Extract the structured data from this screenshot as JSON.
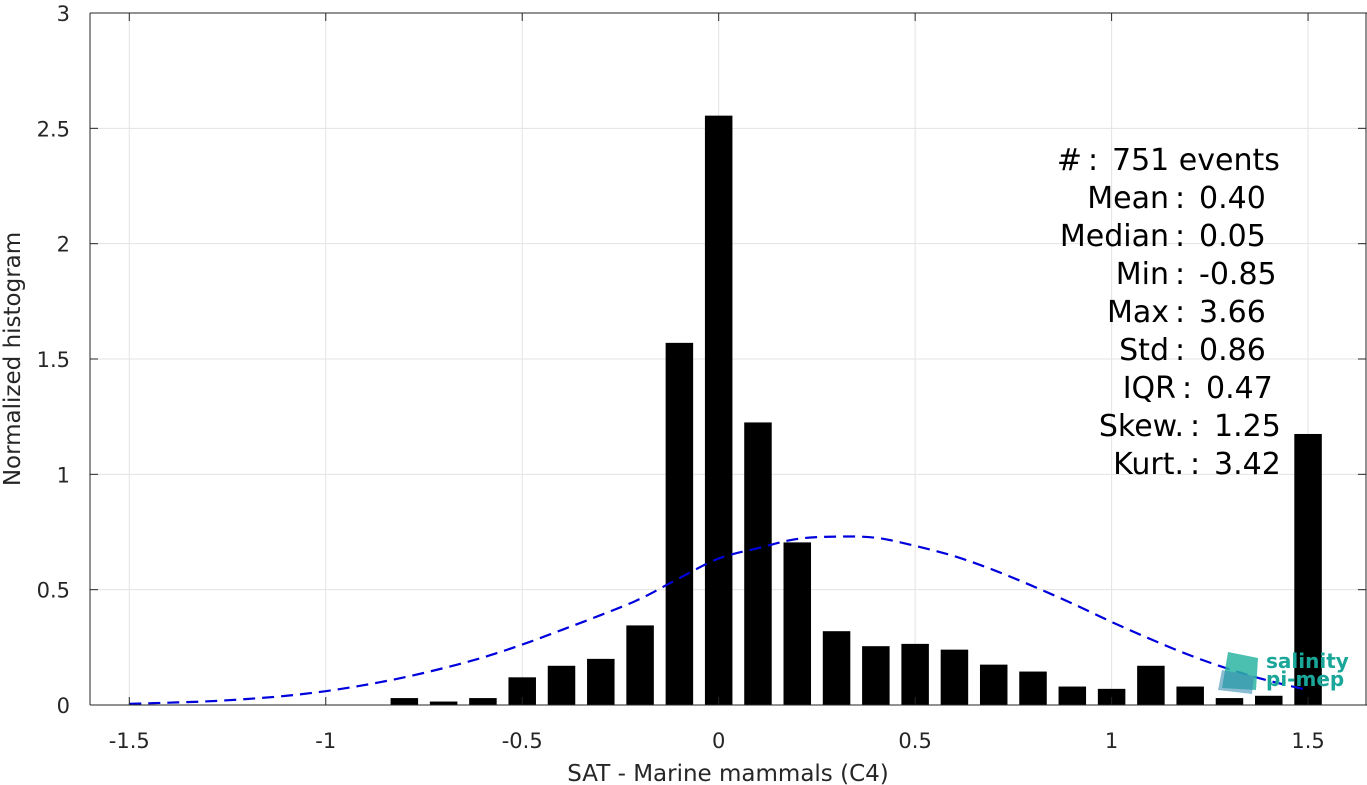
{
  "chart_data": {
    "type": "bar",
    "xlabel": "SAT - Marine mammals (C4)",
    "ylabel": "Normalized histogram",
    "xlim": [
      -1.6,
      1.65
    ],
    "ylim": [
      0,
      3
    ],
    "xticks": [
      -1.5,
      -1,
      -0.5,
      0,
      0.5,
      1,
      1.5
    ],
    "xtick_labels": [
      "-1.5",
      "-1",
      "-0.5",
      "0",
      "0.5",
      "1",
      "1.5"
    ],
    "yticks": [
      0,
      0.5,
      1,
      1.5,
      2,
      2.5,
      3
    ],
    "ytick_labels": [
      "0",
      "0.5",
      "1",
      "1.5",
      "2",
      "2.5",
      "3"
    ],
    "grid": true,
    "bar_width": 0.07,
    "bars": {
      "x": [
        -0.8,
        -0.7,
        -0.6,
        -0.5,
        -0.4,
        -0.3,
        -0.2,
        -0.1,
        0.0,
        0.1,
        0.2,
        0.3,
        0.4,
        0.5,
        0.6,
        0.7,
        0.8,
        0.9,
        1.0,
        1.1,
        1.2,
        1.3,
        1.4,
        1.5
      ],
      "values": [
        0.03,
        0.015,
        0.03,
        0.12,
        0.17,
        0.2,
        0.345,
        1.57,
        2.555,
        1.225,
        0.705,
        0.32,
        0.255,
        0.265,
        0.24,
        0.175,
        0.145,
        0.08,
        0.07,
        0.17,
        0.08,
        0.03,
        0.04,
        1.175
      ],
      "color": "#000000"
    },
    "fit_curve": {
      "style": "dashed",
      "color": "#0000dd",
      "x": [
        -1.5,
        -1.4,
        -1.3,
        -1.2,
        -1.1,
        -1.0,
        -0.9,
        -0.8,
        -0.7,
        -0.6,
        -0.5,
        -0.4,
        -0.3,
        -0.2,
        -0.1,
        0.0,
        0.1,
        0.2,
        0.3,
        0.4,
        0.5,
        0.6,
        0.7,
        0.8,
        0.9,
        1.0,
        1.1,
        1.2,
        1.3,
        1.4,
        1.5
      ],
      "y": [
        0.005,
        0.01,
        0.016,
        0.026,
        0.04,
        0.06,
        0.087,
        0.12,
        0.16,
        0.206,
        0.262,
        0.325,
        0.39,
        0.46,
        0.55,
        0.635,
        0.68,
        0.72,
        0.73,
        0.725,
        0.69,
        0.645,
        0.585,
        0.515,
        0.44,
        0.36,
        0.285,
        0.215,
        0.155,
        0.105,
        0.065
      ]
    },
    "stats": [
      {
        "label": "#",
        "sep": ":",
        "value": "751 events"
      },
      {
        "label": "Mean",
        "sep": ":",
        "value": "0.40"
      },
      {
        "label": "Median",
        "sep": ":",
        "value": "0.05"
      },
      {
        "label": "Min",
        "sep": ":",
        "value": "-0.85"
      },
      {
        "label": "Max",
        "sep": ":",
        "value": "3.66"
      },
      {
        "label": "Std",
        "sep": ":",
        "value": "0.86"
      },
      {
        "label": "IQR",
        "sep": ":",
        "value": "0.47"
      },
      {
        "label": "Skew.",
        "sep": ":",
        "value": "1.25"
      },
      {
        "label": "Kurt.",
        "sep": ":",
        "value": "3.42"
      }
    ]
  },
  "logo": {
    "line1": "salinity",
    "line2": "pi-mep",
    "color": "#1aa79a"
  }
}
